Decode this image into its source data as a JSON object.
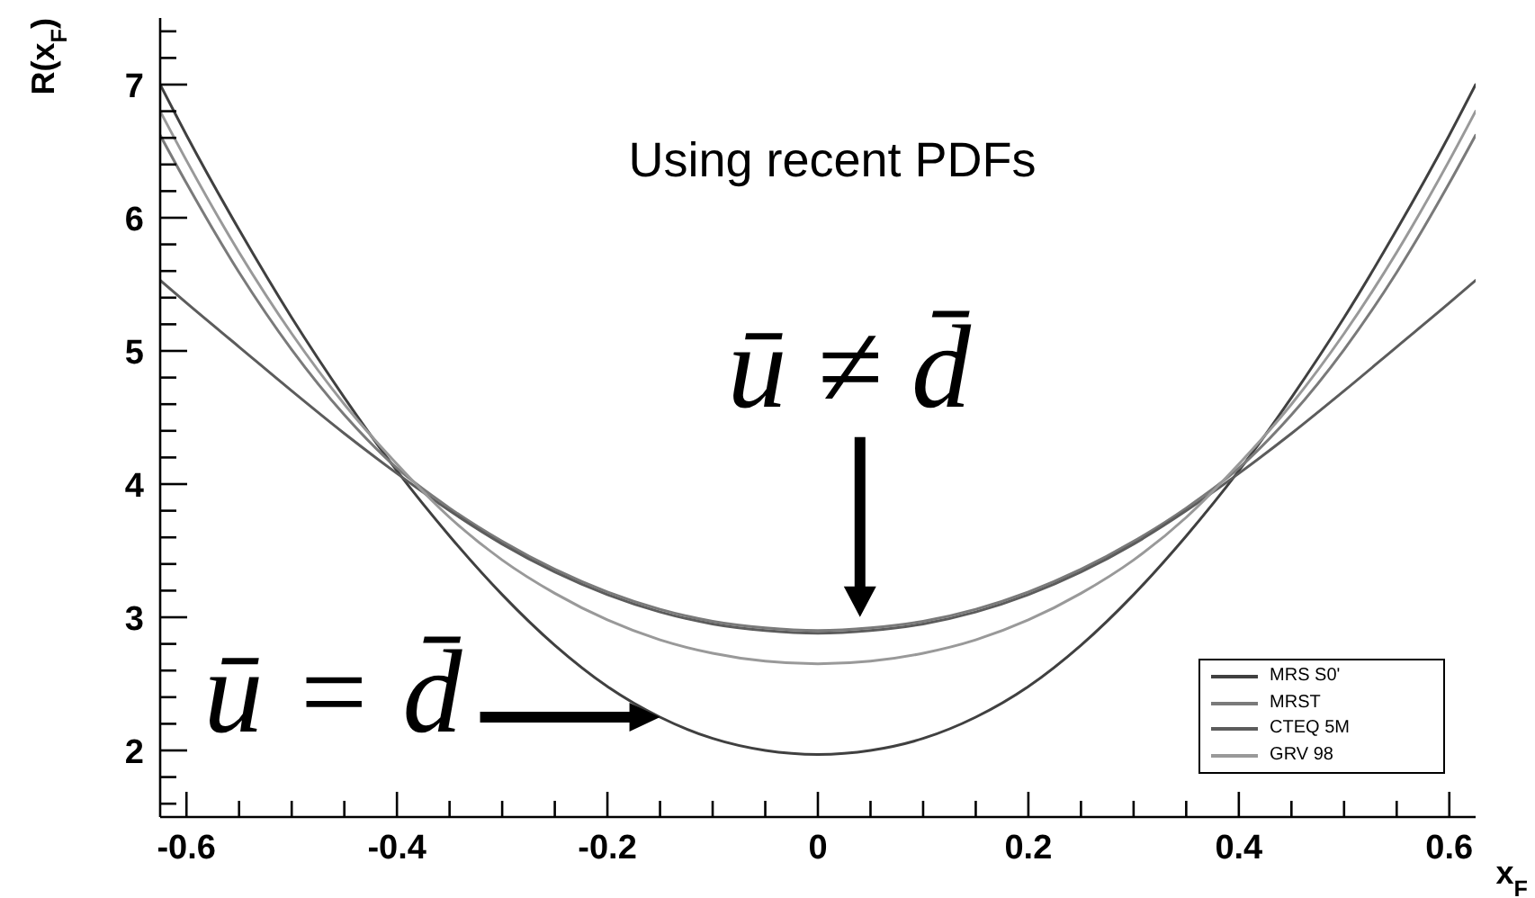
{
  "chart_data": {
    "type": "line",
    "xlabel": "x$_{F}$",
    "ylabel": "R(x$_{F}$)",
    "annotations": [
      "Using recent PDFs",
      {
        "text": "ū ≠ d̄",
        "x": 0.04,
        "y": 2.92
      },
      {
        "text": "ū = d̄",
        "x": -0.15,
        "y": 2.25
      }
    ],
    "x": [
      -0.625,
      -0.6,
      -0.55,
      -0.5,
      -0.45,
      -0.4,
      -0.35,
      -0.3,
      -0.25,
      -0.2,
      -0.15,
      -0.1,
      -0.05,
      0,
      0.05,
      0.1,
      0.15,
      0.2,
      0.25,
      0.3,
      0.35,
      0.4,
      0.45,
      0.5,
      0.55,
      0.6,
      0.625
    ],
    "series": [
      {
        "name": "MRS S0'",
        "color": "#404040",
        "values": [
          7.0,
          6.62,
          5.91,
          5.25,
          4.65,
          4.1,
          3.61,
          3.17,
          2.79,
          2.48,
          2.25,
          2.09,
          2.0,
          1.97,
          2.0,
          2.09,
          2.25,
          2.48,
          2.79,
          3.17,
          3.61,
          4.1,
          4.65,
          5.25,
          5.91,
          6.62,
          7.0
        ]
      },
      {
        "name": "MRST",
        "color": "#7a7a7a",
        "values": [
          6.62,
          6.26,
          5.59,
          5.01,
          4.52,
          4.12,
          3.82,
          3.57,
          3.36,
          3.19,
          3.06,
          2.97,
          2.92,
          2.9,
          2.92,
          2.97,
          3.06,
          3.19,
          3.36,
          3.57,
          3.82,
          4.12,
          4.52,
          5.01,
          5.59,
          6.26,
          6.62
        ]
      },
      {
        "name": "CTEQ 5M",
        "color": "#5c5c5c",
        "values": [
          5.53,
          5.36,
          5.03,
          4.7,
          4.38,
          4.08,
          3.8,
          3.55,
          3.34,
          3.17,
          3.04,
          2.95,
          2.9,
          2.88,
          2.9,
          2.95,
          3.04,
          3.17,
          3.34,
          3.55,
          3.8,
          4.08,
          4.38,
          4.7,
          5.03,
          5.36,
          5.53
        ]
      },
      {
        "name": "GRV 98",
        "color": "#999999",
        "values": [
          6.8,
          6.43,
          5.74,
          5.13,
          4.6,
          4.15,
          3.75,
          3.43,
          3.18,
          2.98,
          2.83,
          2.73,
          2.67,
          2.65,
          2.67,
          2.73,
          2.83,
          2.98,
          3.18,
          3.43,
          3.75,
          4.15,
          4.6,
          5.13,
          5.74,
          6.43,
          6.8
        ]
      }
    ],
    "xlim": [
      -0.625,
      0.625
    ],
    "ylim": [
      1.5,
      7.5
    ],
    "xticks": [
      -0.6,
      {
        "value": -0.55,
        "label": null
      },
      {
        "value": -0.5,
        "label": null
      },
      {
        "value": -0.45,
        "label": null
      },
      -0.4,
      {
        "value": -0.35,
        "label": null
      },
      {
        "value": -0.3,
        "label": null
      },
      {
        "value": -0.25,
        "label": null
      },
      -0.2,
      {
        "value": -0.15,
        "label": null
      },
      {
        "value": -0.1,
        "label": null
      },
      {
        "value": -0.05,
        "label": null
      },
      0,
      {
        "value": 0.05,
        "label": null
      },
      {
        "value": 0.1,
        "label": null
      },
      {
        "value": 0.15,
        "label": null
      },
      0.2,
      {
        "value": 0.25,
        "label": null
      },
      {
        "value": 0.3,
        "label": null
      },
      {
        "value": 0.35,
        "label": null
      },
      0.4,
      {
        "value": 0.45,
        "label": null
      },
      {
        "value": 0.5,
        "label": null
      },
      {
        "value": 0.55,
        "label": null
      },
      0.6
    ],
    "yticks": [
      {
        "value": 1.6,
        "label": null
      },
      {
        "value": 1.8,
        "label": null
      },
      2,
      {
        "value": 2.2,
        "label": null
      },
      {
        "value": 2.4,
        "label": null
      },
      {
        "value": 2.6,
        "label": null
      },
      {
        "value": 2.8,
        "label": null
      },
      3,
      {
        "value": 3.2,
        "label": null
      },
      {
        "value": 3.4,
        "label": null
      },
      {
        "value": 3.6,
        "label": null
      },
      {
        "value": 3.8,
        "label": null
      },
      4,
      {
        "value": 4.2,
        "label": null
      },
      {
        "value": 4.4,
        "label": null
      },
      {
        "value": 4.6,
        "label": null
      },
      {
        "value": 4.8,
        "label": null
      },
      5,
      {
        "value": 5.2,
        "label": null
      },
      {
        "value": 5.4,
        "label": null
      },
      {
        "value": 5.6,
        "label": null
      },
      {
        "value": 5.8,
        "label": null
      },
      6,
      {
        "value": 6.2,
        "label": null
      },
      {
        "value": 6.4,
        "label": null
      },
      {
        "value": 6.6,
        "label": null
      },
      {
        "value": 6.8,
        "label": null
      },
      7,
      {
        "value": 7.2,
        "label": null
      },
      {
        "value": 7.4,
        "label": null
      }
    ],
    "legend": "bottom right",
    "marker": "none",
    "line_style": "solid"
  }
}
